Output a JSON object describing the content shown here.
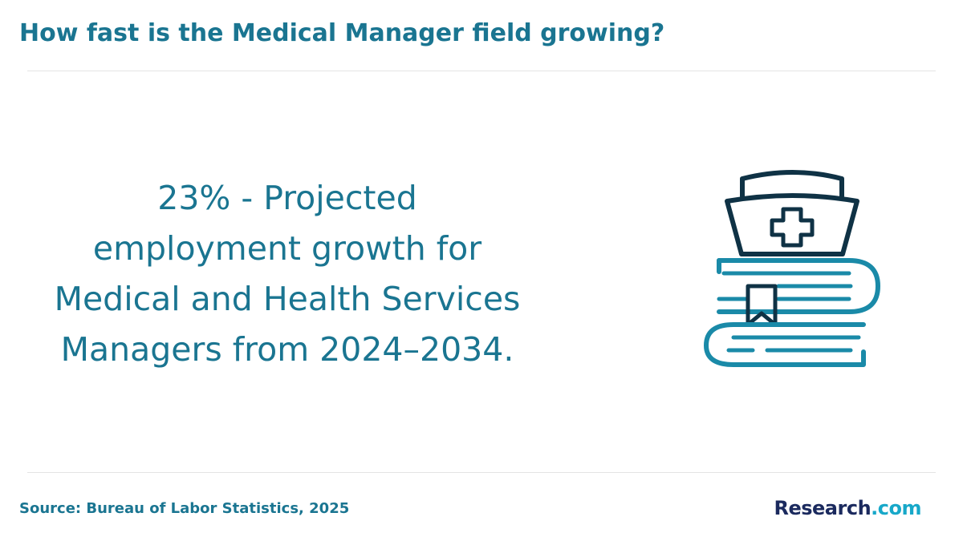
{
  "header": {
    "title": "How fast is the Medical Manager field growing?"
  },
  "stat": {
    "lines": [
      "23% - Projected",
      "employment growth for",
      "Medical and Health Services",
      "Managers from 2024–2034."
    ]
  },
  "illustration": {
    "icon": "nurse-cap-books-icon",
    "dark_color": "#0f3245",
    "accent_color": "#1a8aa8"
  },
  "footer": {
    "source": "Source: Bureau of Labor Statistics, 2025",
    "logo_brand": "Research",
    "logo_tld": ".com"
  },
  "colors": {
    "text_teal": "#1a7591",
    "logo_navy": "#1b2a5e",
    "logo_cyan": "#17a8c9"
  }
}
